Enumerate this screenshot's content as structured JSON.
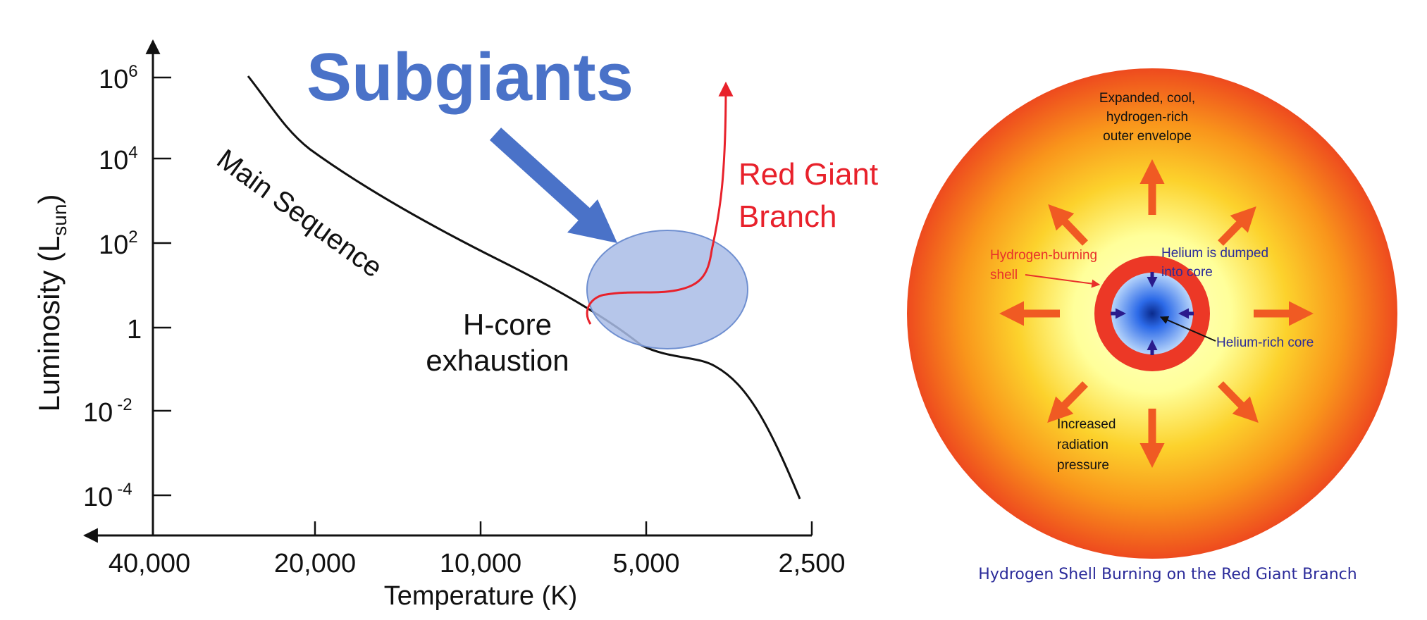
{
  "hr_diagram": {
    "title": "Subgiants",
    "y_axis_label_main": "Luminosity (L",
    "y_axis_label_sub": "sun",
    "y_axis_label_close": ")",
    "y_ticks": [
      {
        "base": "10",
        "exp": "6"
      },
      {
        "base": "10",
        "exp": "4"
      },
      {
        "base": "10",
        "exp": "2"
      },
      {
        "base": "1",
        "exp": ""
      },
      {
        "base": "10",
        "exp": "-2"
      },
      {
        "base": "10",
        "exp": "-4"
      }
    ],
    "x_axis_label": "Temperature (K)",
    "x_ticks": [
      "40,000",
      "20,000",
      "10,000",
      "5,000",
      "2,500"
    ],
    "main_sequence_label": "Main Sequence",
    "h_core_label_line1": "H-core",
    "h_core_label_line2": "exhaustion",
    "red_giant_label_line1": "Red Giant",
    "red_giant_label_line2": "Branch",
    "colors": {
      "title": "#4a72c8",
      "arrow": "#4a72c8",
      "ellipse_fill": "#a9bce6",
      "ellipse_stroke": "#6f8fd0",
      "red_giant": "#e8212b",
      "main_sequence": "#111111"
    }
  },
  "star_diagram": {
    "envelope_label": [
      "Expanded, cool,",
      "hydrogen-rich",
      "outer envelope"
    ],
    "shell_label": [
      "Hydrogen-burning",
      "shell"
    ],
    "dumped_label": [
      "Helium is dumped",
      "into core"
    ],
    "core_label": "Helium-rich core",
    "pressure_label": [
      "Increased",
      "radiation",
      "pressure"
    ],
    "caption": "Hydrogen Shell Burning on the Red Giant Branch",
    "colors": {
      "outer": "#ee4a1e",
      "middle": "#f9a81a",
      "inner": "#ffff9a",
      "shell": "#ec3826",
      "core": "#2c6ae8",
      "arrows": "#f05a23",
      "caption": "#2b2b9a",
      "helium_text": "#2b2b9a",
      "shell_text": "#e8302a"
    }
  }
}
